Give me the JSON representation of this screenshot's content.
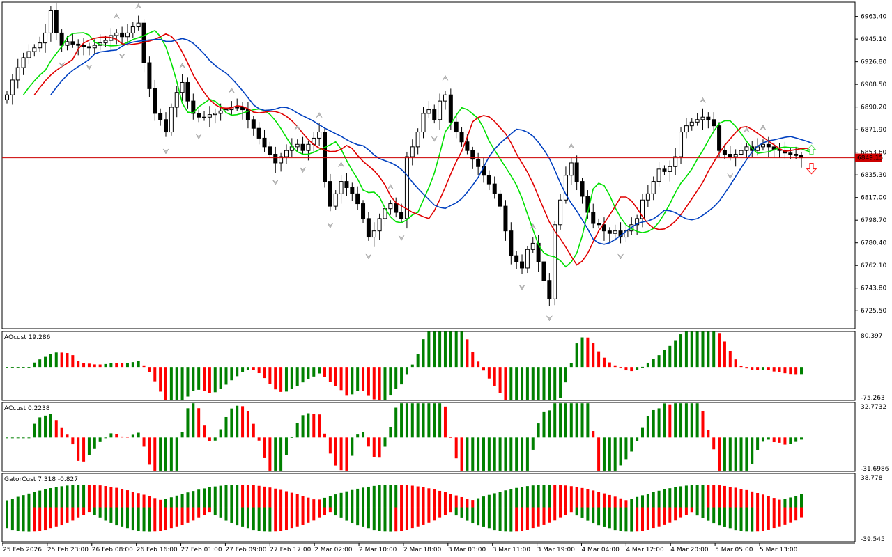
{
  "chart_data": [
    {
      "type": "candlestick",
      "price_axis": {
        "ticks": [
          "6963.40",
          "6945.10",
          "6926.80",
          "6908.50",
          "6890.20",
          "6871.90",
          "6853.60",
          "6835.30",
          "6817.00",
          "6798.70",
          "6780.40",
          "6762.10",
          "6743.80",
          "6725.50"
        ],
        "ylim": [
          6711,
          6975
        ]
      },
      "current_price_label": "6849.15",
      "current_price": 6849.15,
      "time_axis": {
        "labels": [
          "25 Feb 2026",
          "25 Feb 23:00",
          "26 Feb 08:00",
          "26 Feb 16:00",
          "27 Feb 01:00",
          "27 Feb 09:00",
          "27 Feb 17:00",
          "2 Mar 02:00",
          "2 Mar 10:00",
          "2 Mar 18:00",
          "3 Mar 03:00",
          "3 Mar 11:00",
          "3 Mar 19:00",
          "4 Mar 04:00",
          "4 Mar 12:00",
          "4 Mar 20:00",
          "5 Mar 05:00",
          "5 Mar 13:00"
        ]
      },
      "candles_count": 146,
      "candle_closes": [
        6900,
        6912,
        6922,
        6930,
        6935,
        6938,
        6942,
        6950,
        6968,
        6950,
        6940,
        6943,
        6941,
        6940,
        6939,
        6938,
        6940,
        6942,
        6944,
        6948,
        6950,
        6947,
        6950,
        6955,
        6958,
        6926,
        6905,
        6885,
        6880,
        6870,
        6890,
        6902,
        6910,
        6895,
        6885,
        6882,
        6882,
        6884,
        6885,
        6887,
        6888,
        6890,
        6890,
        6888,
        6880,
        6873,
        6865,
        6858,
        6852,
        6845,
        6850,
        6855,
        6858,
        6860,
        6855,
        6860,
        6865,
        6870,
        6830,
        6810,
        6820,
        6830,
        6825,
        6820,
        6812,
        6800,
        6785,
        6790,
        6800,
        6808,
        6812,
        6805,
        6800,
        6850,
        6858,
        6870,
        6885,
        6888,
        6880,
        6895,
        6900,
        6878,
        6870,
        6862,
        6855,
        6848,
        6842,
        6835,
        6828,
        6820,
        6810,
        6790,
        6770,
        6765,
        6760,
        6775,
        6780,
        6765,
        6750,
        6735,
        6795,
        6815,
        6835,
        6845,
        6830,
        6818,
        6805,
        6796,
        6795,
        6790,
        6788,
        6790,
        6785,
        6790,
        6795,
        6800,
        6815,
        6820,
        6830,
        6840,
        6838,
        6842,
        6850,
        6870,
        6875,
        6878,
        6880,
        6882,
        6880,
        6875,
        6855,
        6852,
        6850,
        6852,
        6855,
        6858,
        6855,
        6858,
        6860,
        6858,
        6856,
        6855,
        6853,
        6852,
        6851,
        6849.15
      ],
      "series": [
        {
          "name": "",
          "color": "#00e000",
          "type": "line"
        },
        {
          "name": "",
          "color": "#e00000",
          "type": "line"
        },
        {
          "name": "",
          "color": "#0040c0",
          "type": "line"
        }
      ]
    },
    {
      "type": "histogram",
      "label": "AOcust 19.286",
      "ylim": [
        -75.263,
        80.397
      ],
      "ticks": [
        "80.397",
        "-75.263"
      ],
      "colors": {
        "up": "#008000",
        "down": "#ff0000"
      }
    },
    {
      "type": "histogram",
      "label": "ACcust 0.2238",
      "ylim": [
        -31.6986,
        32.7732
      ],
      "ticks": [
        "32.7732",
        "-31.6986"
      ],
      "colors": {
        "up": "#008000",
        "down": "#ff0000"
      }
    },
    {
      "type": "histogram",
      "label": "GatorCust 7.318 -0.827",
      "ylim": [
        -39.545,
        38.778
      ],
      "ticks": [
        "38.778",
        "-39.545"
      ],
      "colors": {
        "up": "#008000",
        "down": "#ff0000"
      }
    }
  ]
}
